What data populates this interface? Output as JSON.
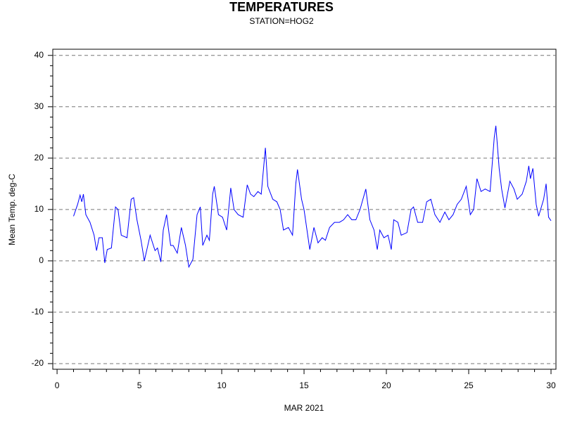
{
  "chart_data": {
    "type": "line",
    "title": "TEMPERATURES",
    "subtitle": "STATION=HOG2",
    "x_label": "MAR 2021",
    "y_label": "Mean Temp. deg-C",
    "xlim": [
      -0.26,
      30.3
    ],
    "ylim": [
      -21.1,
      41.2
    ],
    "xticks": [
      0,
      5,
      10,
      15,
      20,
      25,
      30
    ],
    "yticks": [
      -20,
      -10,
      0,
      10,
      20,
      30,
      40
    ],
    "xminorticks": [
      1,
      2,
      3,
      4,
      6,
      7,
      8,
      9,
      11,
      12,
      13,
      14,
      16,
      17,
      18,
      19,
      21,
      22,
      23,
      24,
      26,
      27,
      28,
      29
    ],
    "yminorticks": [
      -18,
      -16,
      -14,
      -12,
      -8,
      -6,
      -4,
      -2,
      2,
      4,
      6,
      8,
      12,
      14,
      16,
      18,
      22,
      24,
      26,
      28,
      32,
      34,
      36,
      38
    ],
    "grid": true,
    "series": [
      {
        "name": "Mean Temp",
        "color": "#0000ff",
        "x": [
          1.0,
          1.25,
          1.4,
          1.5,
          1.6,
          1.75,
          2.0,
          2.25,
          2.4,
          2.55,
          2.75,
          2.9,
          3.05,
          3.3,
          3.55,
          3.7,
          3.9,
          4.25,
          4.5,
          4.65,
          4.85,
          5.1,
          5.3,
          5.65,
          5.95,
          6.1,
          6.3,
          6.45,
          6.65,
          6.9,
          7.05,
          7.3,
          7.55,
          7.8,
          8.0,
          8.25,
          8.5,
          8.7,
          8.85,
          9.1,
          9.25,
          9.45,
          9.55,
          9.8,
          10.05,
          10.3,
          10.55,
          10.75,
          11.0,
          11.3,
          11.55,
          11.75,
          11.95,
          12.2,
          12.4,
          12.65,
          12.8,
          13.1,
          13.35,
          13.55,
          13.75,
          14.05,
          14.3,
          14.5,
          14.6,
          14.85,
          15.0,
          15.35,
          15.6,
          15.85,
          16.1,
          16.3,
          16.55,
          16.85,
          17.15,
          17.4,
          17.65,
          17.9,
          18.15,
          18.4,
          18.75,
          19.0,
          19.25,
          19.45,
          19.6,
          19.85,
          20.1,
          20.3,
          20.45,
          20.7,
          20.9,
          21.25,
          21.5,
          21.65,
          21.9,
          22.2,
          22.45,
          22.7,
          22.95,
          23.25,
          23.55,
          23.8,
          24.05,
          24.3,
          24.55,
          24.85,
          25.1,
          25.3,
          25.5,
          25.75,
          26.0,
          26.3,
          26.55,
          26.65,
          26.85,
          27.0,
          27.2,
          27.5,
          27.75,
          27.95,
          28.25,
          28.5,
          28.65,
          28.75,
          28.9,
          29.1,
          29.25,
          29.55,
          29.7,
          29.85,
          30.0
        ],
        "values": [
          8.7,
          11,
          12.8,
          11.5,
          13,
          9,
          7.5,
          5,
          2,
          4.5,
          4.5,
          -0.4,
          2.2,
          2.5,
          10.5,
          10,
          5,
          4.5,
          12,
          12.3,
          8,
          4,
          0,
          5,
          2,
          2.5,
          -0.2,
          6,
          9,
          3,
          3,
          1.5,
          6.5,
          3,
          -1.2,
          0.3,
          9,
          10.5,
          3,
          5,
          4,
          13,
          14.5,
          9,
          8.5,
          6,
          14.2,
          10,
          9,
          8.5,
          14.8,
          13,
          12.5,
          13.5,
          13,
          22,
          14.5,
          12,
          11.5,
          10,
          6,
          6.5,
          5,
          15,
          17.8,
          12,
          10,
          2.2,
          6.5,
          3.5,
          4.5,
          4,
          6.5,
          7.5,
          7.5,
          8,
          9,
          8,
          8,
          10,
          14,
          8,
          6,
          2.2,
          6,
          4.5,
          5,
          2.2,
          8,
          7.5,
          5,
          5.5,
          10,
          10.5,
          7.5,
          7.5,
          11.5,
          12,
          9,
          7.5,
          9.5,
          8,
          9,
          11,
          12,
          14.5,
          9,
          10,
          16,
          13.5,
          14,
          13.5,
          24,
          26.3,
          18,
          14,
          10.3,
          15.5,
          14,
          12,
          13,
          15.5,
          18.5,
          16,
          18,
          11,
          8.7,
          12,
          15,
          8.5,
          7.8
        ]
      }
    ]
  }
}
